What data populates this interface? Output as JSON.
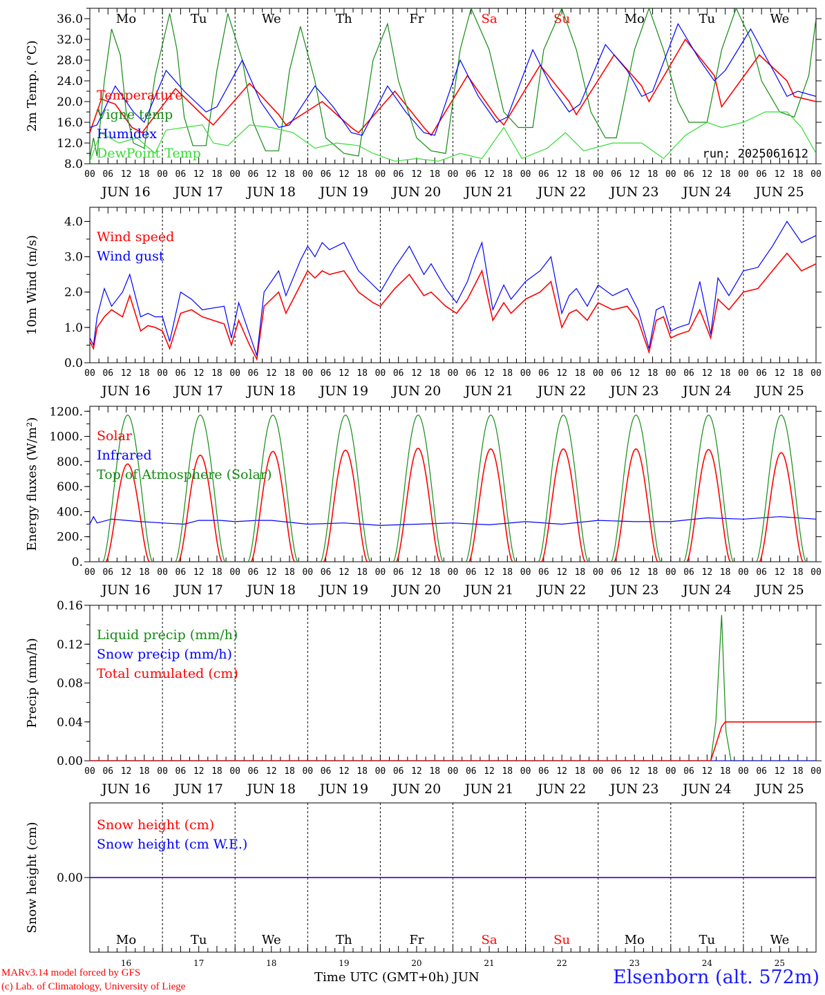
{
  "run_label": "run: 2025061612",
  "weekdays": [
    {
      "label": "Mo",
      "color": "#000000"
    },
    {
      "label": "Tu",
      "color": "#000000"
    },
    {
      "label": "We",
      "color": "#000000"
    },
    {
      "label": "Th",
      "color": "#000000"
    },
    {
      "label": "Fr",
      "color": "#000000"
    },
    {
      "label": "Sa",
      "color": "#ff0000"
    },
    {
      "label": "Su",
      "color": "#ff0000"
    },
    {
      "label": "Mo",
      "color": "#000000"
    },
    {
      "label": "Tu",
      "color": "#000000"
    },
    {
      "label": "We",
      "color": "#000000"
    }
  ],
  "date_labels": [
    "JUN 16",
    "JUN 17",
    "JUN 18",
    "JUN 19",
    "JUN 20",
    "JUN 21",
    "JUN 22",
    "JUN 23",
    "JUN 24",
    "JUN 25"
  ],
  "hour_ticks": [
    "00",
    "06",
    "12",
    "18"
  ],
  "bottom_day_numbers": [
    "16",
    "17",
    "18",
    "19",
    "20",
    "21",
    "22",
    "23",
    "24",
    "25"
  ],
  "bottom_month": "JUN",
  "xaxis_title": "Time UTC (GMT+0h)",
  "station": "Elsenborn (alt. 572m)",
  "credits": [
    "MARv3.14 model forced by GFS",
    "(c) Lab. of Climatology, University of Liege"
  ],
  "colors": {
    "red": "#ff0000",
    "green": "#138a13",
    "blue": "#0000ff",
    "lightgreen": "#33dd33"
  },
  "chart_data": [
    {
      "type": "line",
      "ylabel": "2m Temp. (°C)",
      "ylim": [
        8,
        38
      ],
      "yticks": [
        "8.0",
        "12.0",
        "16.0",
        "20.0",
        "24.0",
        "28.0",
        "32.0",
        "36.0"
      ],
      "x_days": [
        "2025-06-16",
        "2025-06-26"
      ],
      "series": [
        {
          "name": "Temperature",
          "color": "#ff0000",
          "x": [
            0,
            0.16,
            0.35,
            0.58,
            0.72,
            1.18,
            1.58,
            1.7,
            2.2,
            2.6,
            2.7,
            3.2,
            3.6,
            3.7,
            4.2,
            4.6,
            4.7,
            5.2,
            5.6,
            5.7,
            6.2,
            6.6,
            6.7,
            7.22,
            7.6,
            7.7,
            8.2,
            8.6,
            8.7,
            9.22,
            9.6,
            9.7,
            10
          ],
          "y": [
            14,
            20.5,
            19.5,
            15,
            14,
            22.5,
            17,
            15.5,
            23.5,
            17.5,
            15.5,
            20,
            15,
            14,
            22,
            15,
            13.5,
            25,
            17,
            15.5,
            27,
            20,
            17.5,
            29,
            23,
            20,
            32,
            25,
            19,
            29,
            24,
            21,
            20
          ]
        },
        {
          "name": "Vigne temp",
          "color": "#138a13",
          "x": [
            0,
            0.05,
            0.1,
            0.2,
            0.3,
            0.42,
            0.5,
            0.6,
            0.75,
            0.9,
            1.1,
            1.2,
            1.3,
            1.42,
            1.6,
            1.75,
            1.9,
            2.1,
            2.25,
            2.42,
            2.6,
            2.75,
            2.9,
            3.1,
            3.25,
            3.5,
            3.7,
            3.9,
            4.1,
            4.25,
            4.5,
            4.7,
            4.9,
            5.1,
            5.25,
            5.5,
            5.7,
            5.9,
            6.1,
            6.25,
            6.5,
            6.7,
            6.9,
            7.1,
            7.25,
            7.5,
            7.7,
            7.9,
            8.1,
            8.25,
            8.5,
            8.7,
            8.9,
            9.1,
            9.25,
            9.5,
            9.7,
            9.9,
            10
          ],
          "y": [
            9,
            13,
            9.5,
            24,
            34,
            29,
            18,
            12,
            11,
            25,
            37,
            30,
            17,
            11.5,
            11.5,
            26,
            37,
            28,
            16,
            10.5,
            10.5,
            26,
            34.5,
            24,
            13,
            10,
            9.5,
            28,
            35,
            24,
            13,
            10.5,
            10,
            30,
            38,
            30,
            18,
            15,
            15,
            30,
            38,
            30,
            18,
            13,
            13,
            30,
            38,
            30,
            20,
            16,
            16,
            30,
            38,
            32,
            24,
            18,
            17,
            25,
            36
          ]
        },
        {
          "name": "Humidex",
          "color": "#0000ff",
          "x": [
            0,
            0.1,
            0.35,
            0.6,
            0.75,
            1.05,
            1.3,
            1.6,
            1.75,
            2.1,
            2.35,
            2.6,
            2.75,
            3.1,
            3.35,
            3.6,
            3.75,
            4.1,
            4.35,
            4.6,
            4.75,
            5.1,
            5.35,
            5.6,
            5.75,
            6.1,
            6.35,
            6.6,
            6.75,
            7.1,
            7.4,
            7.6,
            7.75,
            8.1,
            8.4,
            8.6,
            8.75,
            9.1,
            9.45,
            9.6,
            9.75,
            10
          ],
          "y": [
            15,
            15.5,
            23,
            18,
            16,
            26,
            22,
            18,
            19,
            28,
            20,
            15,
            15.5,
            23,
            19,
            14,
            13.5,
            23,
            18,
            14,
            13.5,
            28,
            21,
            16,
            17,
            30,
            23,
            18,
            19.5,
            31,
            26,
            21,
            22,
            35,
            28,
            24,
            26,
            34,
            25,
            21,
            22,
            21
          ]
        },
        {
          "name": "DewPoint Temp",
          "color": "#33dd33",
          "x": [
            0,
            0.15,
            0.4,
            0.65,
            0.9,
            1.05,
            1.3,
            1.55,
            1.7,
            1.9,
            2.2,
            2.5,
            2.8,
            3.1,
            3.4,
            3.7,
            3.9,
            4.2,
            4.5,
            4.8,
            5.1,
            5.4,
            5.7,
            5.95,
            6.3,
            6.55,
            6.8,
            7.2,
            7.6,
            7.9,
            8.2,
            8.5,
            8.7,
            9,
            9.3,
            9.6,
            9.8,
            10
          ],
          "y": [
            8.5,
            14,
            12,
            13,
            10,
            14.5,
            15,
            15.5,
            12,
            11.5,
            15.5,
            15,
            14,
            11,
            12,
            11.5,
            10,
            8.5,
            9,
            8.5,
            10,
            9,
            15,
            9,
            11,
            14,
            10.5,
            12,
            12,
            9,
            13.5,
            16,
            15,
            16,
            18,
            18,
            15,
            10
          ]
        }
      ],
      "legend": [
        "Temperature",
        "Vigne temp",
        "Humidex",
        "DewPoint Temp"
      ],
      "legend_position": "left"
    },
    {
      "type": "line",
      "ylabel": "10m Wind (m/s)",
      "ylim": [
        0,
        4.4
      ],
      "yticks": [
        "0.0",
        "1.0",
        "2.0",
        "3.0",
        "4.0"
      ],
      "series": [
        {
          "name": "Wind speed",
          "color": "#ff0000",
          "x": [
            0,
            0.05,
            0.1,
            0.2,
            0.3,
            0.45,
            0.55,
            0.7,
            0.8,
            0.9,
            1.0,
            1.1,
            1.25,
            1.4,
            1.55,
            1.85,
            1.95,
            2.05,
            2.2,
            2.3,
            2.4,
            2.6,
            2.7,
            2.8,
            2.9,
            3.0,
            3.1,
            3.2,
            3.3,
            3.5,
            3.7,
            3.9,
            4.0,
            4.2,
            4.4,
            4.6,
            4.7,
            4.9,
            5.05,
            5.2,
            5.3,
            5.4,
            5.55,
            5.7,
            5.8,
            6.0,
            6.2,
            6.35,
            6.5,
            6.6,
            6.7,
            6.85,
            7.0,
            7.2,
            7.4,
            7.55,
            7.7,
            7.8,
            7.9,
            8.0,
            8.1,
            8.25,
            8.4,
            8.55,
            8.65,
            8.8,
            9.0,
            9.2,
            9.4,
            9.6,
            9.8,
            10
          ],
          "y": [
            0.6,
            0.4,
            1.0,
            1.3,
            1.5,
            1.3,
            1.9,
            0.9,
            1.05,
            1.0,
            0.9,
            0.4,
            1.4,
            1.5,
            1.3,
            1.1,
            0.5,
            1.2,
            0.5,
            0.1,
            1.6,
            2.0,
            1.4,
            1.8,
            2.2,
            2.6,
            2.4,
            2.6,
            2.5,
            2.6,
            2.0,
            1.7,
            1.6,
            2.1,
            2.5,
            1.9,
            2.0,
            1.6,
            1.4,
            1.8,
            2.2,
            2.6,
            1.2,
            1.7,
            1.4,
            1.8,
            2.0,
            2.3,
            1.0,
            1.4,
            1.5,
            1.2,
            1.7,
            1.5,
            1.6,
            1.2,
            0.3,
            1.2,
            1.3,
            0.7,
            0.8,
            0.9,
            1.5,
            0.7,
            1.8,
            1.5,
            2.0,
            2.1,
            2.6,
            3.1,
            2.6,
            2.8
          ]
        },
        {
          "name": "Wind gust",
          "color": "#0000ff",
          "x": [
            0,
            0.05,
            0.1,
            0.2,
            0.3,
            0.45,
            0.55,
            0.7,
            0.8,
            0.9,
            1.0,
            1.1,
            1.25,
            1.4,
            1.55,
            1.85,
            1.95,
            2.05,
            2.2,
            2.3,
            2.4,
            2.6,
            2.7,
            2.8,
            2.9,
            3.0,
            3.1,
            3.2,
            3.3,
            3.5,
            3.7,
            3.9,
            4.0,
            4.2,
            4.4,
            4.6,
            4.7,
            4.9,
            5.05,
            5.2,
            5.3,
            5.4,
            5.55,
            5.7,
            5.8,
            6.0,
            6.2,
            6.35,
            6.5,
            6.6,
            6.7,
            6.85,
            7.0,
            7.2,
            7.4,
            7.55,
            7.7,
            7.8,
            7.9,
            8.0,
            8.1,
            8.25,
            8.4,
            8.55,
            8.65,
            8.8,
            9.0,
            9.2,
            9.4,
            9.6,
            9.8,
            10
          ],
          "y": [
            0.7,
            0.5,
            1.3,
            2.1,
            1.6,
            2.0,
            2.5,
            1.3,
            1.4,
            1.3,
            1.3,
            0.6,
            2.0,
            1.8,
            1.5,
            1.6,
            0.7,
            1.7,
            0.8,
            0.2,
            2.0,
            2.6,
            1.9,
            2.4,
            2.9,
            3.3,
            3.0,
            3.4,
            3.2,
            3.4,
            2.6,
            2.2,
            2.0,
            2.7,
            3.3,
            2.5,
            2.8,
            2.1,
            1.7,
            2.3,
            2.9,
            3.4,
            1.5,
            2.2,
            1.8,
            2.3,
            2.6,
            3.0,
            1.4,
            1.9,
            2.1,
            1.6,
            2.2,
            1.9,
            2.1,
            1.5,
            0.4,
            1.5,
            1.6,
            0.9,
            1.0,
            1.1,
            2.3,
            0.8,
            2.4,
            1.9,
            2.6,
            2.7,
            3.3,
            4.0,
            3.4,
            3.6
          ]
        }
      ],
      "legend": [
        "Wind speed",
        "Wind gust"
      ],
      "legend_position": "top-left"
    },
    {
      "type": "line",
      "ylabel": "Energy fluxes (W/m²)",
      "ylim": [
        0,
        1240
      ],
      "yticks": [
        "0.",
        "200.",
        "400.",
        "600.",
        "800.",
        "1000.",
        "1200."
      ],
      "series": [
        {
          "name": "Solar",
          "color": "#ff0000",
          "peaks": [
            780,
            850,
            880,
            890,
            905,
            900,
            900,
            900,
            895,
            870
          ],
          "peak_hour": 12.5
        },
        {
          "name": "Infrared",
          "color": "#0000ff",
          "x": [
            0,
            0.05,
            0.1,
            0.3,
            0.5,
            0.7,
            1.0,
            1.3,
            1.5,
            1.8,
            2.0,
            2.3,
            2.5,
            3.0,
            3.5,
            4.0,
            4.5,
            5.0,
            5.5,
            6.0,
            6.5,
            7.0,
            7.5,
            8.0,
            8.5,
            9.0,
            9.5,
            10
          ],
          "y": [
            300,
            360,
            310,
            340,
            330,
            320,
            310,
            300,
            330,
            330,
            320,
            330,
            330,
            300,
            310,
            290,
            300,
            310,
            295,
            320,
            300,
            330,
            320,
            320,
            350,
            340,
            360,
            340
          ]
        },
        {
          "name": "Top of Atmosphere (Solar)",
          "color": "#138a13",
          "peaks": [
            1170,
            1170,
            1170,
            1170,
            1170,
            1170,
            1170,
            1170,
            1170,
            1170
          ],
          "peak_hour": 12.5
        }
      ],
      "legend": [
        "Solar",
        "Infrared",
        "Top of Atmosphere (Solar)"
      ],
      "legend_position": "top-left"
    },
    {
      "type": "line",
      "ylabel": "Precip (mm/h)",
      "ylim": [
        0,
        0.16
      ],
      "yticks": [
        "0.00",
        "0.04",
        "0.08",
        "0.12",
        "0.16"
      ],
      "series": [
        {
          "name": "Liquid precip (mm/h)",
          "color": "#138a13",
          "x": [
            0,
            8.55,
            8.62,
            8.7,
            8.76,
            8.83,
            10
          ],
          "y": [
            0,
            0,
            0.04,
            0.15,
            0.03,
            0,
            0
          ]
        },
        {
          "name": "Snow precip (mm/h)",
          "color": "#0000ff",
          "x": [
            0,
            10
          ],
          "y": [
            0,
            0
          ]
        },
        {
          "name": "Total cumulated (cm)",
          "color": "#ff0000",
          "x": [
            0,
            8.55,
            8.7,
            8.75,
            10
          ],
          "y": [
            0,
            0,
            0.035,
            0.04,
            0.04
          ]
        }
      ],
      "legend": [
        "Liquid precip (mm/h)",
        "Snow precip (mm/h)",
        "Total cumulated (cm)"
      ],
      "legend_position": "top-left"
    },
    {
      "type": "line",
      "ylabel": "Snow height (cm)",
      "yticks": [
        "0.00"
      ],
      "series": [
        {
          "name": "Snow height (cm)",
          "color": "#ff0000",
          "x": [
            0,
            10
          ],
          "y": [
            0,
            0
          ]
        },
        {
          "name": "Snow height (cm W.E.)",
          "color": "#0000ff",
          "x": [
            0,
            10
          ],
          "y": [
            0,
            0
          ]
        }
      ],
      "legend": [
        "Snow height (cm)",
        "Snow height (cm W.E.)"
      ],
      "legend_position": "top-left"
    }
  ]
}
